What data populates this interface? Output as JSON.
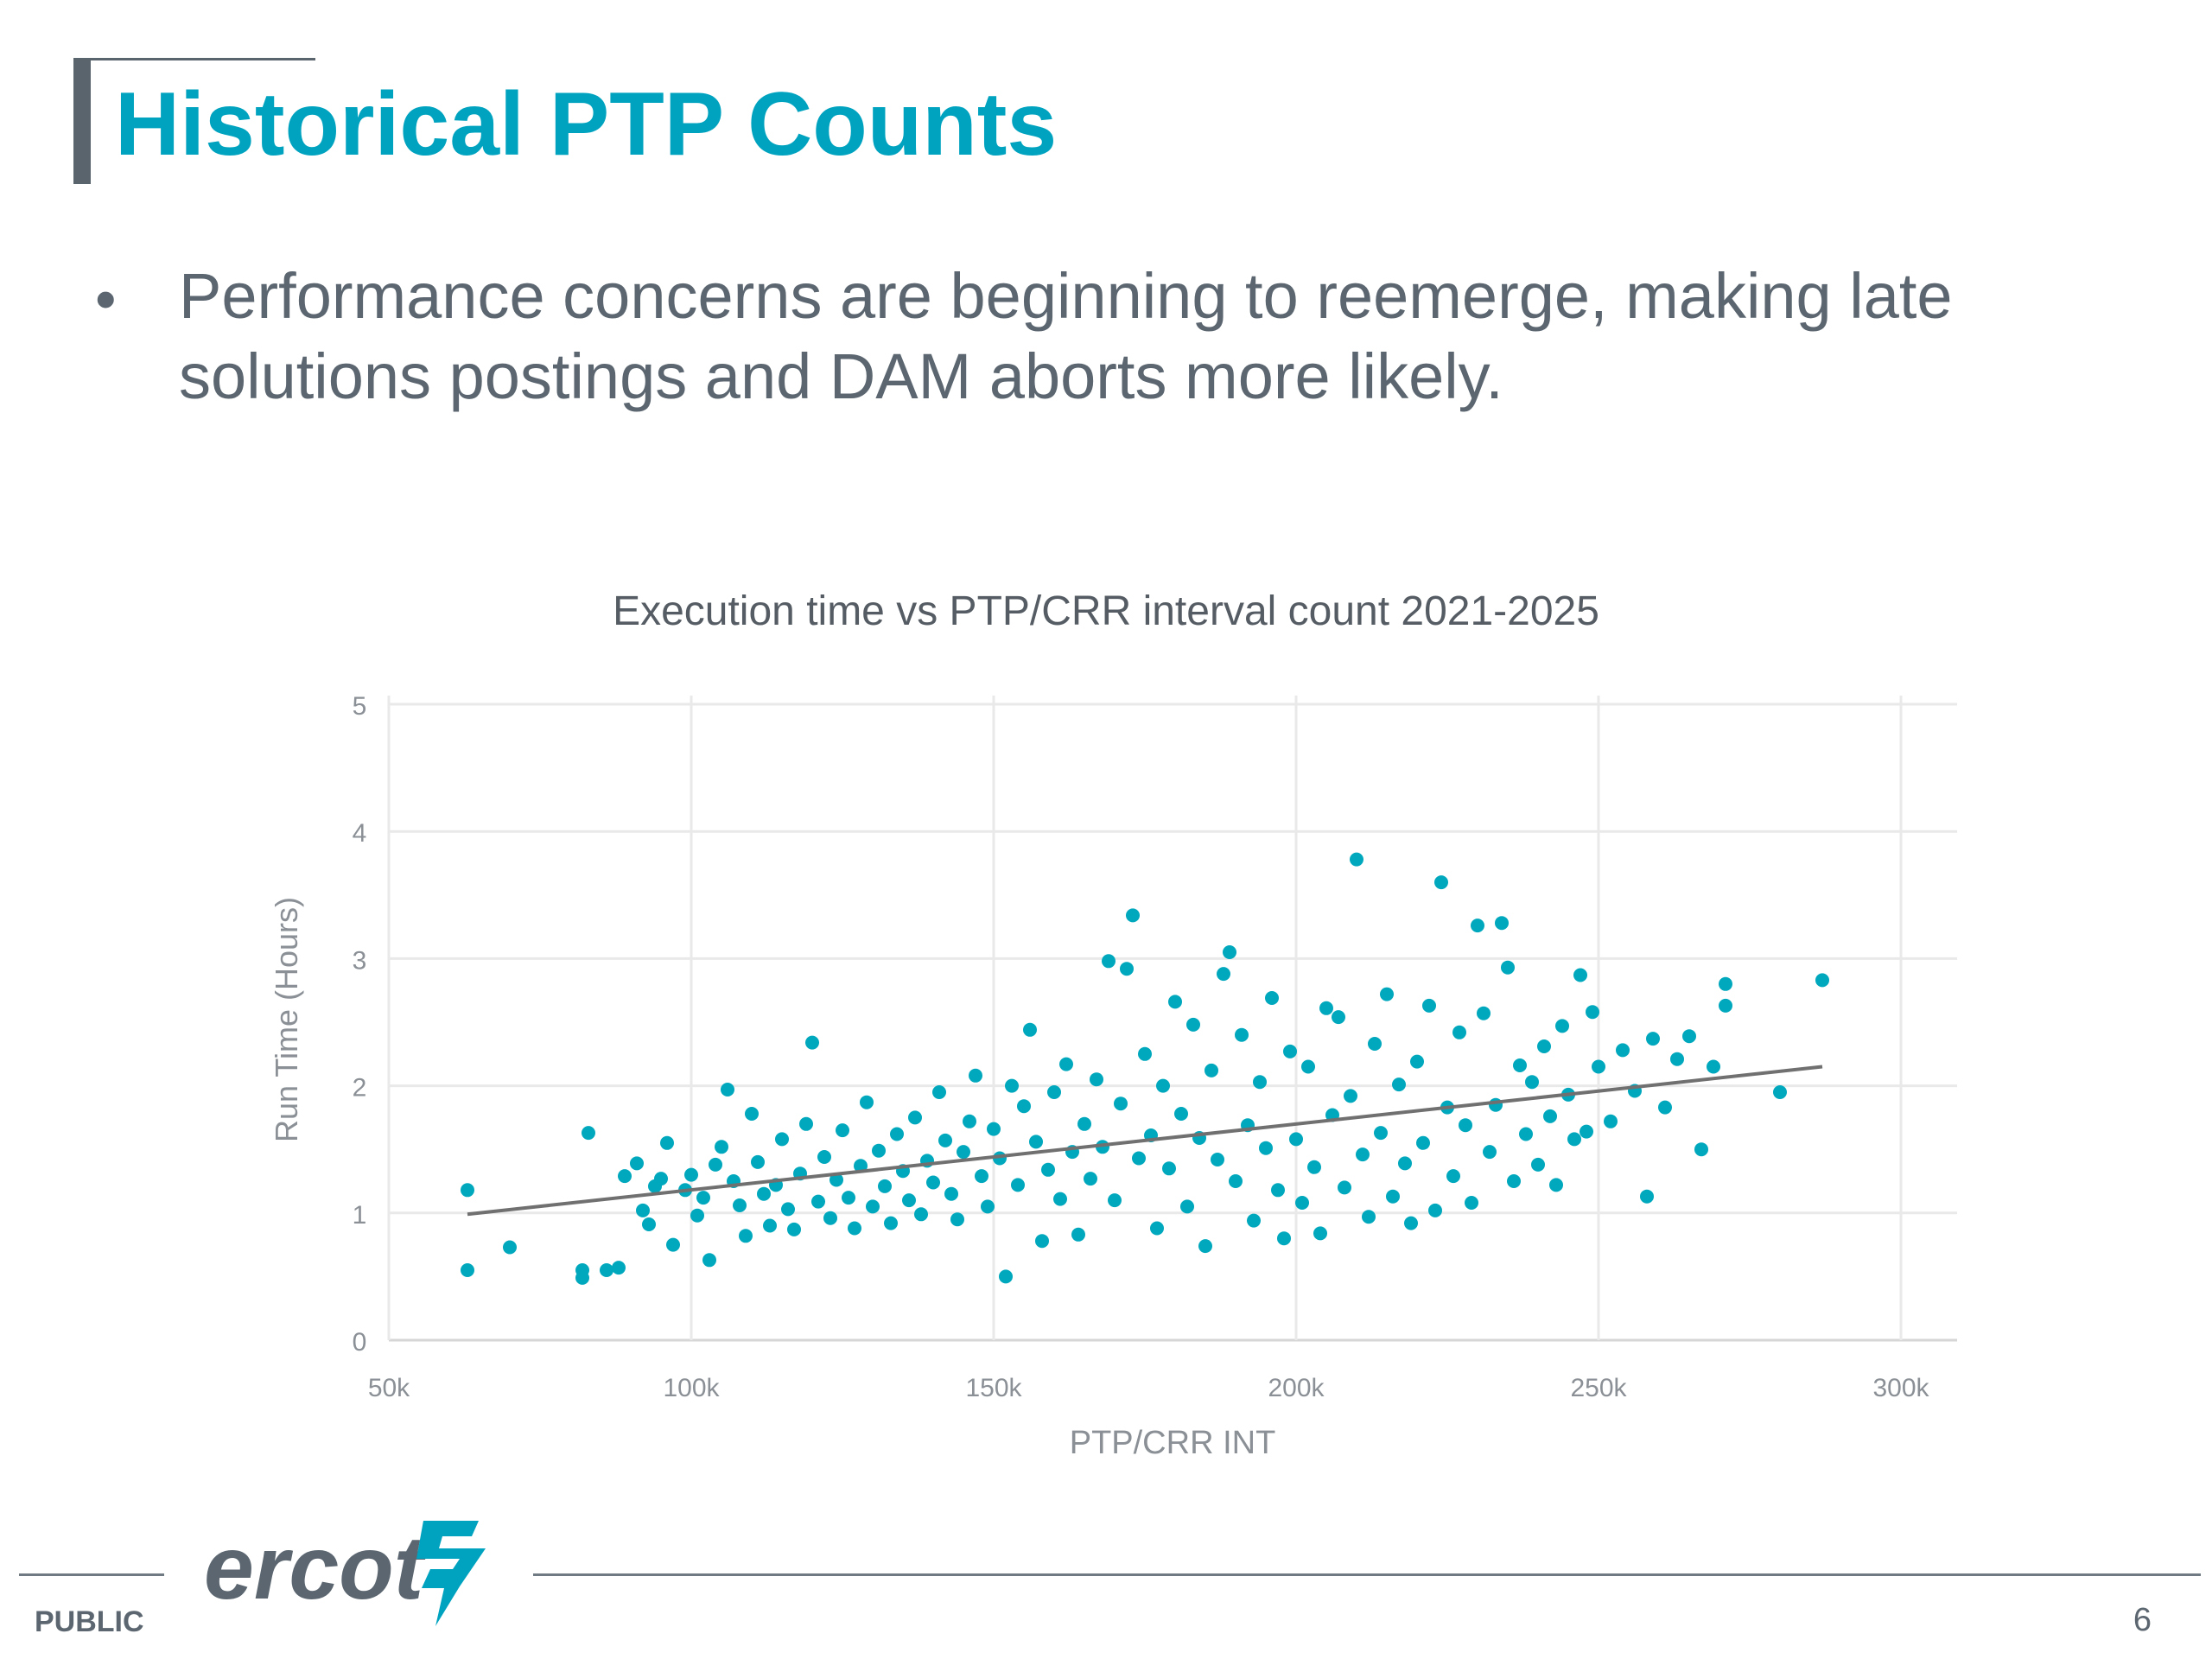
{
  "slide": {
    "title": "Historical PTP Counts",
    "bullet": "Performance concerns are beginning to reemerge, making late solutions postings and DAM aborts more likely.",
    "footer_label": "PUBLIC",
    "page_number": "6",
    "logo_text": "ercot"
  },
  "colors": {
    "title": "#00a3bf",
    "text": "#5b6670",
    "points": "#00a8bd",
    "trend": "#707070",
    "grid": "#e9e9e9"
  },
  "chart_data": {
    "type": "scatter",
    "title": "Execution time vs PTP/CRR interval count 2021-2025",
    "xlabel": "PTP/CRR INT",
    "ylabel": "Run Time (Hours)",
    "xlim": [
      50000,
      310000
    ],
    "ylim": [
      0,
      5
    ],
    "x_ticks": [
      50000,
      100000,
      150000,
      200000,
      250000,
      300000
    ],
    "x_tick_labels": [
      "50k",
      "100k",
      "150k",
      "200k",
      "250k",
      "300k"
    ],
    "y_ticks": [
      0,
      1,
      2,
      3,
      4,
      5
    ],
    "y_tick_labels": [
      "0",
      "1",
      "2",
      "3",
      "4",
      "5"
    ],
    "grid": true,
    "legend": "none",
    "trendline": {
      "x": [
        63000,
        287000
      ],
      "y": [
        0.99,
        2.15
      ]
    },
    "points": [
      [
        63000,
        1.18
      ],
      [
        63000,
        0.55
      ],
      [
        70000,
        0.73
      ],
      [
        83000,
        1.63
      ],
      [
        82000,
        0.55
      ],
      [
        82000,
        0.49
      ],
      [
        86000,
        0.55
      ],
      [
        88000,
        0.57
      ],
      [
        89000,
        1.29
      ],
      [
        91000,
        1.39
      ],
      [
        92000,
        1.02
      ],
      [
        93000,
        0.91
      ],
      [
        94000,
        1.21
      ],
      [
        95000,
        1.27
      ],
      [
        96000,
        1.55
      ],
      [
        97000,
        0.75
      ],
      [
        99000,
        1.18
      ],
      [
        100000,
        1.3
      ],
      [
        101000,
        0.98
      ],
      [
        102000,
        1.12
      ],
      [
        103000,
        0.63
      ],
      [
        104000,
        1.38
      ],
      [
        105000,
        1.52
      ],
      [
        106000,
        1.97
      ],
      [
        107000,
        1.25
      ],
      [
        108000,
        1.06
      ],
      [
        109000,
        0.82
      ],
      [
        110000,
        1.78
      ],
      [
        111000,
        1.4
      ],
      [
        112000,
        1.15
      ],
      [
        113000,
        0.9
      ],
      [
        114000,
        1.22
      ],
      [
        115000,
        1.58
      ],
      [
        116000,
        1.03
      ],
      [
        117000,
        0.87
      ],
      [
        118000,
        1.31
      ],
      [
        119000,
        1.7
      ],
      [
        120000,
        2.34
      ],
      [
        121000,
        1.09
      ],
      [
        122000,
        1.44
      ],
      [
        123000,
        0.96
      ],
      [
        124000,
        1.26
      ],
      [
        125000,
        1.65
      ],
      [
        126000,
        1.12
      ],
      [
        127000,
        0.88
      ],
      [
        128000,
        1.37
      ],
      [
        129000,
        1.87
      ],
      [
        130000,
        1.05
      ],
      [
        131000,
        1.49
      ],
      [
        132000,
        1.21
      ],
      [
        133000,
        0.92
      ],
      [
        134000,
        1.62
      ],
      [
        135000,
        1.33
      ],
      [
        136000,
        1.1
      ],
      [
        137000,
        1.75
      ],
      [
        138000,
        0.99
      ],
      [
        139000,
        1.41
      ],
      [
        140000,
        1.24
      ],
      [
        141000,
        1.95
      ],
      [
        142000,
        1.57
      ],
      [
        143000,
        1.15
      ],
      [
        144000,
        0.95
      ],
      [
        145000,
        1.48
      ],
      [
        146000,
        1.72
      ],
      [
        147000,
        2.08
      ],
      [
        148000,
        1.29
      ],
      [
        149000,
        1.05
      ],
      [
        150000,
        1.66
      ],
      [
        151000,
        1.43
      ],
      [
        152000,
        0.5
      ],
      [
        153000,
        2.0
      ],
      [
        154000,
        1.22
      ],
      [
        155000,
        1.84
      ],
      [
        156000,
        2.44
      ],
      [
        157000,
        1.56
      ],
      [
        158000,
        0.78
      ],
      [
        159000,
        1.34
      ],
      [
        160000,
        1.95
      ],
      [
        161000,
        1.11
      ],
      [
        162000,
        2.17
      ],
      [
        163000,
        1.48
      ],
      [
        164000,
        0.83
      ],
      [
        165000,
        1.7
      ],
      [
        166000,
        1.27
      ],
      [
        167000,
        2.05
      ],
      [
        168000,
        1.52
      ],
      [
        169000,
        2.98
      ],
      [
        170000,
        1.1
      ],
      [
        171000,
        1.86
      ],
      [
        172000,
        2.92
      ],
      [
        173000,
        3.34
      ],
      [
        174000,
        1.43
      ],
      [
        175000,
        2.25
      ],
      [
        176000,
        1.61
      ],
      [
        177000,
        0.88
      ],
      [
        178000,
        2.0
      ],
      [
        179000,
        1.35
      ],
      [
        180000,
        2.66
      ],
      [
        181000,
        1.78
      ],
      [
        182000,
        1.05
      ],
      [
        183000,
        2.48
      ],
      [
        184000,
        1.59
      ],
      [
        185000,
        0.74
      ],
      [
        186000,
        2.12
      ],
      [
        187000,
        1.42
      ],
      [
        188000,
        2.88
      ],
      [
        189000,
        3.05
      ],
      [
        190000,
        1.25
      ],
      [
        191000,
        2.4
      ],
      [
        192000,
        1.69
      ],
      [
        193000,
        0.94
      ],
      [
        194000,
        2.03
      ],
      [
        195000,
        1.51
      ],
      [
        196000,
        2.69
      ],
      [
        197000,
        1.18
      ],
      [
        198000,
        0.8
      ],
      [
        199000,
        2.27
      ],
      [
        200000,
        1.58
      ],
      [
        201000,
        1.08
      ],
      [
        202000,
        2.15
      ],
      [
        203000,
        1.36
      ],
      [
        204000,
        0.84
      ],
      [
        205000,
        2.61
      ],
      [
        206000,
        1.77
      ],
      [
        207000,
        2.54
      ],
      [
        208000,
        1.2
      ],
      [
        209000,
        1.92
      ],
      [
        210000,
        3.78
      ],
      [
        211000,
        1.46
      ],
      [
        212000,
        0.97
      ],
      [
        213000,
        2.33
      ],
      [
        214000,
        1.63
      ],
      [
        215000,
        2.72
      ],
      [
        216000,
        1.13
      ],
      [
        217000,
        2.01
      ],
      [
        218000,
        1.39
      ],
      [
        219000,
        0.92
      ],
      [
        220000,
        2.19
      ],
      [
        221000,
        1.55
      ],
      [
        222000,
        2.63
      ],
      [
        223000,
        1.02
      ],
      [
        224000,
        3.6
      ],
      [
        225000,
        1.83
      ],
      [
        226000,
        1.29
      ],
      [
        227000,
        2.42
      ],
      [
        228000,
        1.69
      ],
      [
        229000,
        1.08
      ],
      [
        230000,
        3.26
      ],
      [
        231000,
        2.57
      ],
      [
        232000,
        1.48
      ],
      [
        233000,
        1.85
      ],
      [
        234000,
        3.28
      ],
      [
        235000,
        2.93
      ],
      [
        236000,
        1.25
      ],
      [
        237000,
        2.16
      ],
      [
        238000,
        1.62
      ],
      [
        239000,
        2.03
      ],
      [
        240000,
        1.38
      ],
      [
        241000,
        2.31
      ],
      [
        242000,
        1.76
      ],
      [
        243000,
        1.22
      ],
      [
        244000,
        2.47
      ],
      [
        245000,
        1.93
      ],
      [
        246000,
        1.58
      ],
      [
        247000,
        2.87
      ],
      [
        248000,
        1.64
      ],
      [
        249000,
        2.58
      ],
      [
        250000,
        2.15
      ],
      [
        252000,
        1.72
      ],
      [
        254000,
        2.28
      ],
      [
        256000,
        1.96
      ],
      [
        258000,
        1.13
      ],
      [
        259000,
        2.37
      ],
      [
        261000,
        1.83
      ],
      [
        263000,
        2.21
      ],
      [
        265000,
        2.39
      ],
      [
        267000,
        1.5
      ],
      [
        269000,
        2.15
      ],
      [
        271000,
        2.63
      ],
      [
        271000,
        2.8
      ],
      [
        280000,
        1.95
      ],
      [
        287000,
        2.83
      ]
    ]
  }
}
